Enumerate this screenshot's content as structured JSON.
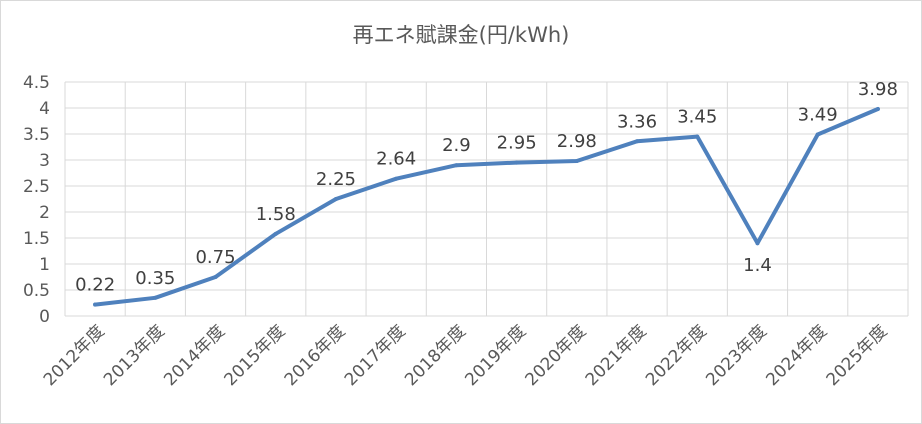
{
  "chart_data": {
    "type": "line",
    "title": "再エネ賦課金(円/kWh)",
    "categories": [
      "2012年度",
      "2013年度",
      "2014年度",
      "2015年度",
      "2016年度",
      "2017年度",
      "2018年度",
      "2019年度",
      "2020年度",
      "2021年度",
      "2022年度",
      "2023年度",
      "2024年度",
      "2025年度"
    ],
    "series": [
      {
        "values": [
          0.22,
          0.35,
          0.75,
          1.58,
          2.25,
          2.64,
          2.9,
          2.95,
          2.98,
          3.36,
          3.45,
          1.4,
          3.49,
          3.98
        ],
        "color": "#4f81bd"
      }
    ],
    "data_labels": [
      "0.22",
      "0.35",
      "0.75",
      "1.58",
      "2.25",
      "2.64",
      "2.9",
      "2.95",
      "2.98",
      "3.36",
      "3.45",
      "1.4",
      "3.49",
      "3.98"
    ],
    "y_ticks": [
      "0",
      "0.5",
      "1",
      "1.5",
      "2",
      "2.5",
      "3",
      "3.5",
      "4",
      "4.5"
    ],
    "ylim": [
      0,
      4.5
    ],
    "grid": true,
    "legend": "none",
    "xlabel": "",
    "ylabel": ""
  }
}
